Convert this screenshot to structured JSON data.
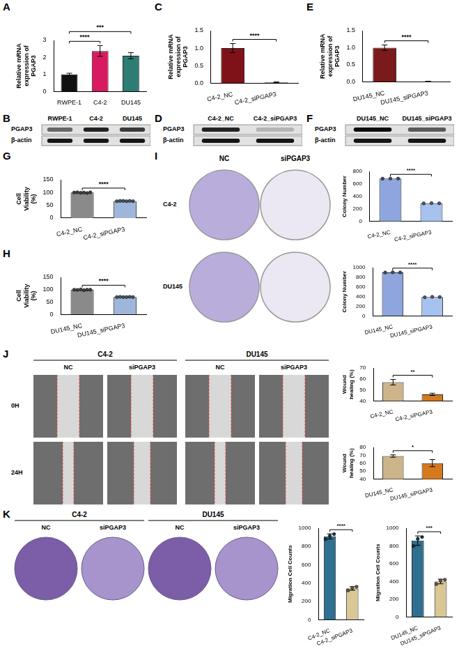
{
  "chart_data": [
    {
      "panel": "A",
      "type": "bar",
      "categories": [
        "RWPE-1",
        "C4-2",
        "DU145"
      ],
      "values": [
        1.0,
        2.38,
        2.1
      ],
      "errors": [
        0.07,
        0.32,
        0.18
      ],
      "colors": [
        "#111111",
        "#d81b60",
        "#2e7d74"
      ],
      "y_label": "Relative mRNA expression of PGAP3",
      "ylim": [
        0,
        3
      ],
      "yticks": [
        0,
        1,
        2,
        3
      ],
      "grid": false,
      "comparisons": [
        {
          "pair": [
            "RWPE-1",
            "C4-2"
          ],
          "label": "****"
        },
        {
          "pair": [
            "RWPE-1",
            "DU145"
          ],
          "label": "***"
        }
      ]
    },
    {
      "panel": "C",
      "type": "bar",
      "categories": [
        "C4-2_NC",
        "C4-2_siPGAP3"
      ],
      "values": [
        1.0,
        0.02
      ],
      "errors": [
        0.13,
        0.01
      ],
      "colors": [
        "#7f1118",
        "#7f1118"
      ],
      "y_label": "Relative mRNA expression of PGAP3",
      "ylim": [
        0,
        1.5
      ],
      "yticks": [
        {
          "value": 0,
          "label": "0.0"
        },
        0.5,
        {
          "value": 1,
          "label": "1.0"
        },
        1.5
      ],
      "grid": false,
      "comparisons": [
        {
          "pair": [
            "C4-2_NC",
            "C4-2_siPGAP3"
          ],
          "label": "****"
        }
      ]
    },
    {
      "panel": "E",
      "type": "bar",
      "categories": [
        "DU145_NC",
        "DU145_siPGAP3"
      ],
      "values": [
        1.0,
        0.01
      ],
      "errors": [
        0.08,
        0.005
      ],
      "colors": [
        "#7a1a1a",
        "#7a1a1a"
      ],
      "y_label": "Relative mRNA expression of PGAP3",
      "ylim": [
        0,
        1.5
      ],
      "yticks": [
        {
          "value": 0,
          "label": "0.0"
        },
        0.5,
        {
          "value": 1,
          "label": "1.0"
        },
        1.5
      ],
      "grid": false,
      "comparisons": [
        {
          "pair": [
            "DU145_NC",
            "DU145_siPGAP3"
          ],
          "label": "****"
        }
      ]
    },
    {
      "panel": "G",
      "type": "bar",
      "categories": [
        "C4-2_NC",
        "C4-2_siPGAP3"
      ],
      "values": [
        100,
        66.5
      ],
      "points": [
        [
          100,
          101,
          99,
          100,
          98,
          101
        ],
        [
          66,
          67,
          67,
          66,
          67,
          66
        ]
      ],
      "colors": [
        "#8a8a8a",
        "#9fb6dc"
      ],
      "y_label": "Cell Viability (%)",
      "ylim": [
        0,
        150
      ],
      "yticks": [
        0,
        50,
        100,
        150
      ],
      "grid": false,
      "comparisons": [
        {
          "pair": [
            "C4-2_NC",
            "C4-2_siPGAP3"
          ],
          "label": "****"
        }
      ]
    },
    {
      "panel": "H",
      "type": "bar",
      "categories": [
        "DU145_NC",
        "DU145_siPGAP3"
      ],
      "values": [
        99.7,
        70.3
      ],
      "points": [
        [
          100,
          99,
          101,
          98,
          100,
          100
        ],
        [
          70,
          71,
          70,
          70,
          71,
          70
        ]
      ],
      "colors": [
        "#8a8a8a",
        "#9fb6dc"
      ],
      "y_label": "Cell Viability (%)",
      "ylim": [
        0,
        150
      ],
      "yticks": [
        0,
        50,
        100,
        150
      ],
      "grid": false,
      "comparisons": [
        {
          "pair": [
            "DU145_NC",
            "DU145_siPGAP3"
          ],
          "label": "****"
        }
      ]
    },
    {
      "type": "bar",
      "categories": [
        "C4-2_NC",
        "C4-2_siPGAP3"
      ],
      "values": [
        685,
        290
      ],
      "points": [
        [
          684,
          686,
          685
        ],
        [
          288,
          292,
          290
        ]
      ],
      "colors": [
        "#8ea6dd",
        "#a8c2ef"
      ],
      "y_label": "Colony Number",
      "ylim": [
        0,
        800
      ],
      "yticks": [
        0,
        200,
        400,
        600,
        800
      ],
      "grid": false,
      "comparisons": [
        {
          "pair": [
            "C4-2_NC",
            "C4-2_siPGAP3"
          ],
          "label": "****"
        }
      ]
    },
    {
      "type": "bar",
      "categories": [
        "DU145_NC",
        "DU145_siPGAP3"
      ],
      "values": [
        900,
        390
      ],
      "points": [
        [
          898,
          902,
          900
        ],
        [
          385,
          395,
          390
        ]
      ],
      "colors": [
        "#8ea6dd",
        "#a8c2ef"
      ],
      "y_label": "Colony Number",
      "ylim": [
        0,
        1000
      ],
      "yticks": [
        0,
        200,
        400,
        600,
        800,
        1000
      ],
      "grid": false,
      "comparisons": [
        {
          "pair": [
            "DU145_NC",
            "DU145_siPGAP3"
          ],
          "label": "****"
        }
      ]
    },
    {
      "type": "bar",
      "categories": [
        "C4-2_NC",
        "C4-2_siPGAP3"
      ],
      "values": [
        57,
        46
      ],
      "errors": [
        2.5,
        1
      ],
      "colors": [
        "#cdb48a",
        "#d4791e"
      ],
      "y_label": "Wound healing (%)",
      "ylim": [
        40,
        70
      ],
      "yticks": [
        40,
        50,
        60,
        70
      ],
      "grid": false,
      "comparisons": [
        {
          "pair": [
            "C4-2_NC",
            "C4-2_siPGAP3"
          ],
          "label": "**"
        }
      ]
    },
    {
      "type": "bar",
      "categories": [
        "DU145_NC",
        "DU145_siPGAP3"
      ],
      "values": [
        69,
        60
      ],
      "errors": [
        1.5,
        4.5
      ],
      "colors": [
        "#cdb48a",
        "#d4791e"
      ],
      "y_label": "Wound healing (%)",
      "ylim": [
        40,
        80
      ],
      "yticks": [
        40,
        50,
        60,
        70,
        80
      ],
      "grid": false,
      "comparisons": [
        {
          "pair": [
            "DU145_NC",
            "DU145_siPGAP3"
          ],
          "label": "*"
        }
      ]
    },
    {
      "type": "bar",
      "categories": [
        "C4-2_NC",
        "C4-2_siPGAP3"
      ],
      "values": [
        910,
        342
      ],
      "errors": [
        28,
        20
      ],
      "points": [
        [
          880,
          915,
          935
        ],
        [
          320,
          345,
          360
        ]
      ],
      "colors": [
        "#2f6f8f",
        "#d9c795"
      ],
      "y_label": "Migration Cell Counts",
      "ylim": [
        0,
        1000
      ],
      "yticks": [
        0,
        200,
        400,
        600,
        800,
        1000
      ],
      "grid": false,
      "comparisons": [
        {
          "pair": [
            "C4-2_NC",
            "C4-2_siPGAP3"
          ],
          "label": "****"
        }
      ]
    },
    {
      "type": "bar",
      "categories": [
        "DU145_NC",
        "DU145_siPGAP3"
      ],
      "values": [
        860,
        400
      ],
      "errors": [
        53,
        26
      ],
      "points": [
        [
          800,
          880,
          900
        ],
        [
          370,
          410,
          420
        ]
      ],
      "colors": [
        "#2f6f8f",
        "#d9c795"
      ],
      "y_label": "Migration Cell Counts",
      "ylim": [
        0,
        1000
      ],
      "yticks": [
        0,
        200,
        400,
        600,
        800,
        1000
      ],
      "grid": false,
      "comparisons": [
        {
          "pair": [
            "DU145_NC",
            "DU145_siPGAP3"
          ],
          "label": "***"
        }
      ]
    }
  ],
  "blots": [
    {
      "panel": "B",
      "lanes": [
        "RWPE-1",
        "C4-2",
        "DU145"
      ],
      "rows": [
        {
          "label": "PGAP3",
          "intensity": [
            0.55,
            0.85,
            0.75
          ]
        },
        {
          "label": "β-actin",
          "intensity": [
            0.9,
            0.9,
            0.9
          ]
        }
      ]
    },
    {
      "panel": "D",
      "lanes": [
        "C4-2_NC",
        "C4-2_siPGAP3"
      ],
      "rows": [
        {
          "label": "PGAP3",
          "intensity": [
            0.85,
            0.2
          ]
        },
        {
          "label": "β-actin",
          "intensity": [
            0.9,
            0.9
          ]
        }
      ]
    },
    {
      "panel": "F",
      "lanes": [
        "DU145_NC",
        "DU145_siPGAP3"
      ],
      "rows": [
        {
          "label": "PGAP3",
          "intensity": [
            0.95,
            0.6
          ]
        },
        {
          "label": "β-actin",
          "intensity": [
            0.9,
            0.9
          ]
        }
      ]
    }
  ],
  "colony_assay": {
    "panel": "I",
    "columns": [
      "NC",
      "siPGAP3"
    ],
    "rows": [
      "C4-2",
      "DU145"
    ]
  },
  "wound_assay": {
    "panel": "J",
    "groups": [
      "C4-2",
      "DU145"
    ],
    "columns": [
      "NC",
      "siPGAP3"
    ],
    "rows": [
      "0H",
      "24H"
    ]
  },
  "transwell_assay": {
    "panel": "K",
    "groups": [
      "C4-2",
      "DU145"
    ],
    "columns": [
      "NC",
      "siPGAP3"
    ]
  }
}
